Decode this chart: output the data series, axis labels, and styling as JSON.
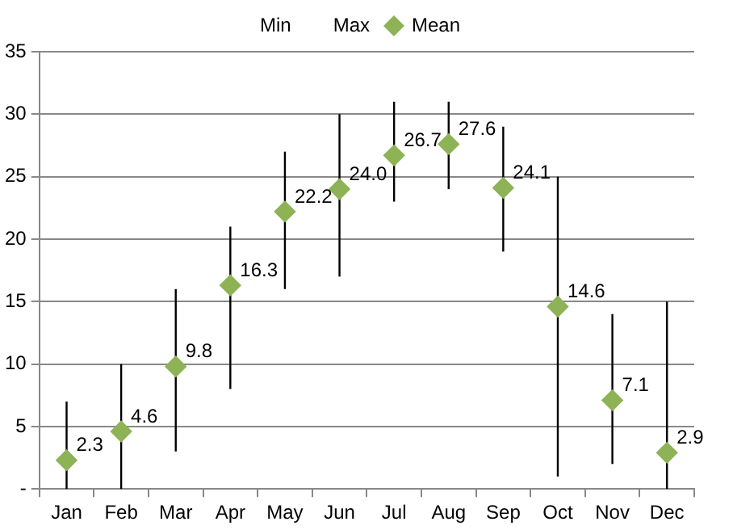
{
  "chart_data": {
    "type": "scatter",
    "categories": [
      "Jan",
      "Feb",
      "Mar",
      "Apr",
      "May",
      "Jun",
      "Jul",
      "Aug",
      "Sep",
      "Oct",
      "Nov",
      "Dec"
    ],
    "series": [
      {
        "name": "Mean",
        "type": "scatter",
        "marker": "diamond",
        "color": "#8db356",
        "values": [
          2.3,
          4.6,
          9.8,
          16.3,
          22.2,
          24.0,
          26.7,
          27.6,
          24.1,
          14.6,
          7.1,
          2.9
        ],
        "value_labels": [
          "2.3",
          "4.6",
          "9.8",
          "16.3",
          "22.2",
          "24.0",
          "26.7",
          "27.6",
          "24.1",
          "14.6",
          "7.1",
          "2.9"
        ],
        "errors": [
          [
            0,
            7
          ],
          [
            0,
            10
          ],
          [
            3,
            16
          ],
          [
            8,
            21
          ],
          [
            16,
            27
          ],
          [
            17,
            30
          ],
          [
            23,
            31
          ],
          [
            24,
            31
          ],
          [
            19,
            29
          ],
          [
            1,
            25
          ],
          [
            2,
            14
          ],
          [
            0,
            15
          ]
        ]
      }
    ],
    "annotations": [
      "Min",
      "Max"
    ],
    "ylim": [
      0,
      35
    ],
    "yticks": [
      {
        "value": 0,
        "label": "-"
      },
      5,
      10,
      15,
      20,
      25,
      30,
      35
    ],
    "grid": "y",
    "legend": "top"
  }
}
